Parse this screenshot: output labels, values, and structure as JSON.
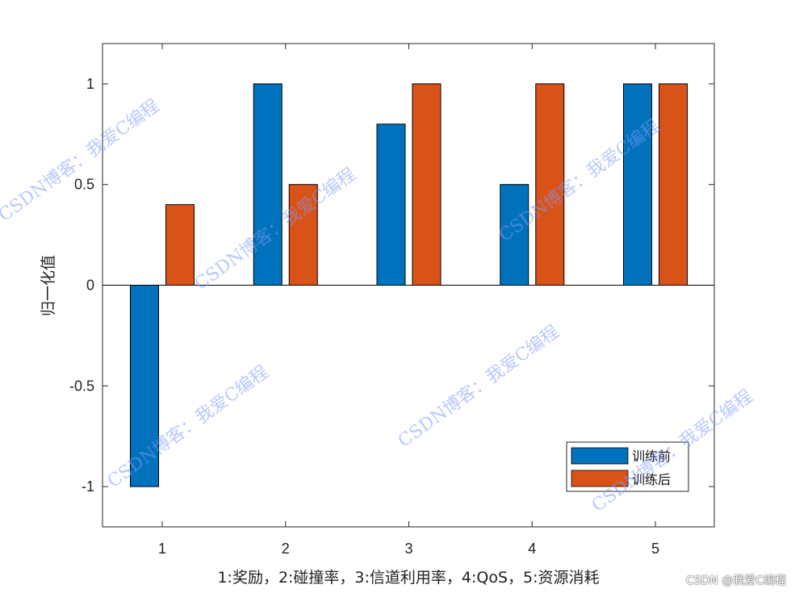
{
  "chart_data": {
    "type": "bar",
    "categories": [
      "1",
      "2",
      "3",
      "4",
      "5"
    ],
    "series": [
      {
        "name": "训练前",
        "color": "#0072BD",
        "values": [
          -1,
          1,
          0.8,
          0.5,
          1
        ]
      },
      {
        "name": "训练后",
        "color": "#D95319",
        "values": [
          0.4,
          0.5,
          1,
          1,
          1
        ]
      }
    ],
    "xlabel": "1:奖励，2:碰撞率，3:信道利用率，4:QoS，5:资源消耗",
    "ylabel": "归一化值",
    "ylim": [
      -1.2,
      1.2
    ],
    "yticks": [
      -1,
      -0.5,
      0,
      0.5,
      1
    ],
    "ytick_labels": [
      "-1",
      "-0.5",
      "0",
      "0.5",
      "1"
    ],
    "grid": false,
    "legend_position": "bottom-right"
  },
  "watermark": {
    "text": "CSDN博客：我爱C编程",
    "footer": "CSDN @我爱C编程"
  }
}
